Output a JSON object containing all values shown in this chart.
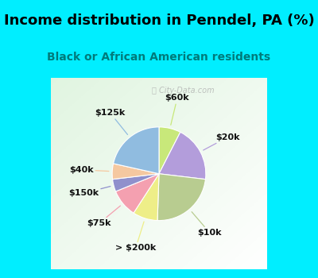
{
  "title": "Income distribution in Penndel, PA (%)",
  "subtitle": "Black or African American residents",
  "title_color": "#000000",
  "subtitle_color": "#007b7b",
  "bg_cyan": "#00eeff",
  "bg_chart_color1": "#e8f5ee",
  "bg_chart_color2": "#f5fdf8",
  "watermark": "ⓘ City-Data.com",
  "slices": [
    {
      "label": "$60k",
      "value": 7,
      "color": "#c8e87a"
    },
    {
      "label": "$20k",
      "value": 18,
      "color": "#b39ddb"
    },
    {
      "label": "$10k",
      "value": 22,
      "color": "#b8cc90"
    },
    {
      "label": "> $200k",
      "value": 8,
      "color": "#eeee88"
    },
    {
      "label": "$75k",
      "value": 9,
      "color": "#f4a0b0"
    },
    {
      "label": "$150k",
      "value": 4,
      "color": "#9090cc"
    },
    {
      "label": "$40k",
      "value": 5,
      "color": "#f5c8a0"
    },
    {
      "label": "$125k",
      "value": 20,
      "color": "#90bce0"
    }
  ],
  "title_fontsize": 13,
  "subtitle_fontsize": 10,
  "label_fontsize": 8,
  "figsize": [
    4.0,
    3.5
  ],
  "dpi": 100
}
